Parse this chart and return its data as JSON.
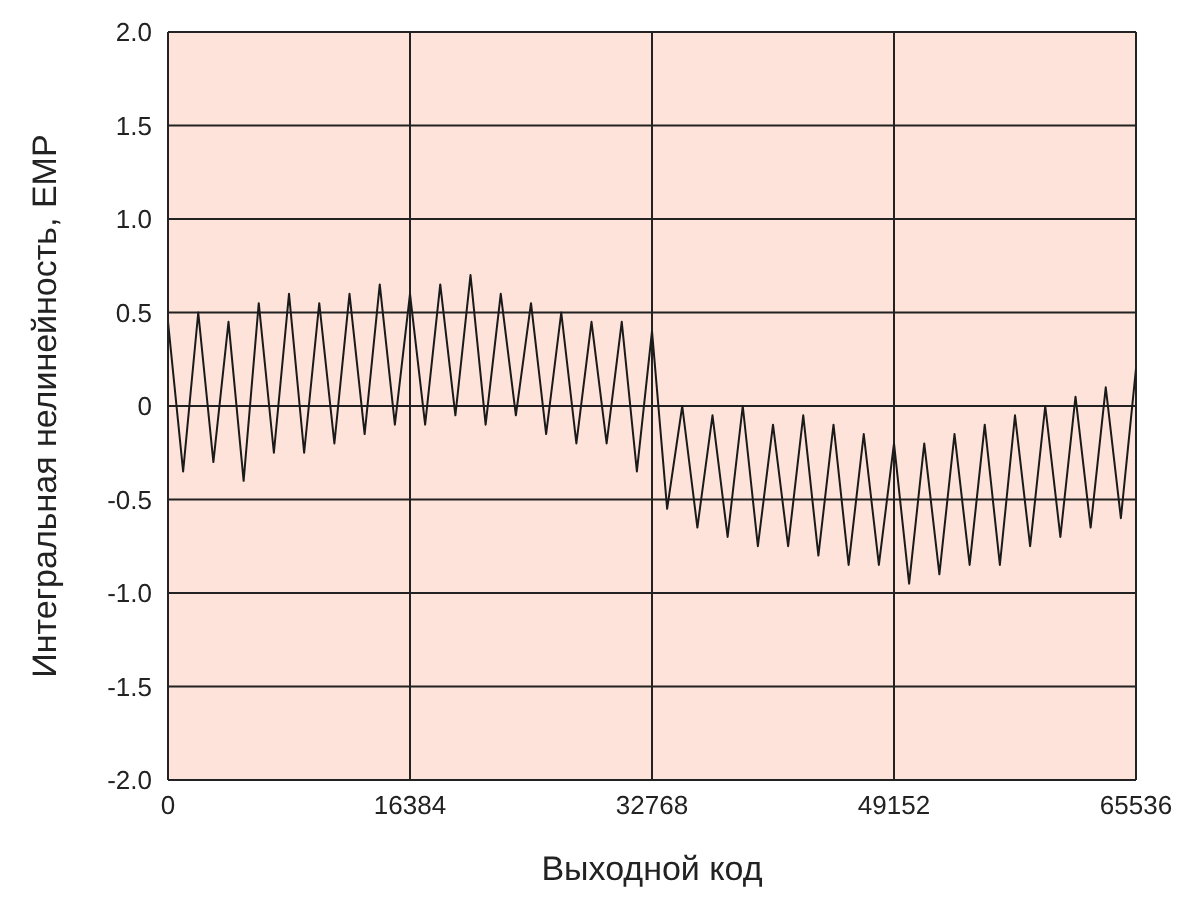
{
  "chart_data": {
    "type": "line",
    "xlabel": "Выходной код",
    "ylabel": "Интегральная нелинейность, ЕМР",
    "xlim": [
      0,
      65536
    ],
    "xticks": [
      0,
      16384,
      32768,
      49152,
      65536
    ],
    "ylim": [
      -2,
      2
    ],
    "yticks": [
      {
        "value": -2,
        "label": "-2.0"
      },
      {
        "value": -1.5,
        "label": "-1.5"
      },
      {
        "value": -1,
        "label": "-1.0"
      },
      {
        "value": -0.5,
        "label": "-0.5"
      },
      0,
      {
        "value": 0.5,
        "label": "0.5"
      },
      {
        "value": 1,
        "label": "1.0"
      },
      {
        "value": 1.5,
        "label": "1.5"
      },
      {
        "value": 2,
        "label": "2.0"
      }
    ],
    "grid": true,
    "legend": false,
    "marker": "none",
    "line_style": "solid",
    "x": [
      0,
      1024,
      2048,
      3072,
      4096,
      5120,
      6144,
      7168,
      8192,
      9216,
      10240,
      11264,
      12288,
      13312,
      14336,
      15360,
      16384,
      17408,
      18432,
      19456,
      20480,
      21504,
      22528,
      23552,
      24576,
      25600,
      26624,
      27648,
      28672,
      29696,
      30720,
      31744,
      32768,
      33792,
      34816,
      35840,
      36864,
      37888,
      38912,
      39936,
      40960,
      41984,
      43008,
      44032,
      45056,
      46080,
      47104,
      48128,
      49152,
      50176,
      51200,
      52224,
      53248,
      54272,
      55296,
      56320,
      57344,
      58368,
      59392,
      60416,
      61440,
      62464,
      63488,
      64512,
      65536
    ],
    "series": [
      {
        "color": "#1a1a1a",
        "values": [
          0.45,
          -0.35,
          0.5,
          -0.3,
          0.45,
          -0.4,
          0.55,
          -0.25,
          0.6,
          -0.25,
          0.55,
          -0.2,
          0.6,
          -0.15,
          0.65,
          -0.1,
          0.6,
          -0.1,
          0.65,
          -0.05,
          0.7,
          -0.1,
          0.6,
          -0.05,
          0.55,
          -0.15,
          0.5,
          -0.2,
          0.45,
          -0.2,
          0.45,
          -0.35,
          0.4,
          -0.55,
          0.0,
          -0.65,
          -0.05,
          -0.7,
          0.0,
          -0.75,
          -0.1,
          -0.75,
          -0.05,
          -0.8,
          -0.1,
          -0.85,
          -0.15,
          -0.85,
          -0.2,
          -0.95,
          -0.2,
          -0.9,
          -0.15,
          -0.85,
          -0.1,
          -0.85,
          -0.05,
          -0.75,
          0.0,
          -0.7,
          0.05,
          -0.65,
          0.1,
          -0.6,
          0.2
        ]
      }
    ]
  }
}
